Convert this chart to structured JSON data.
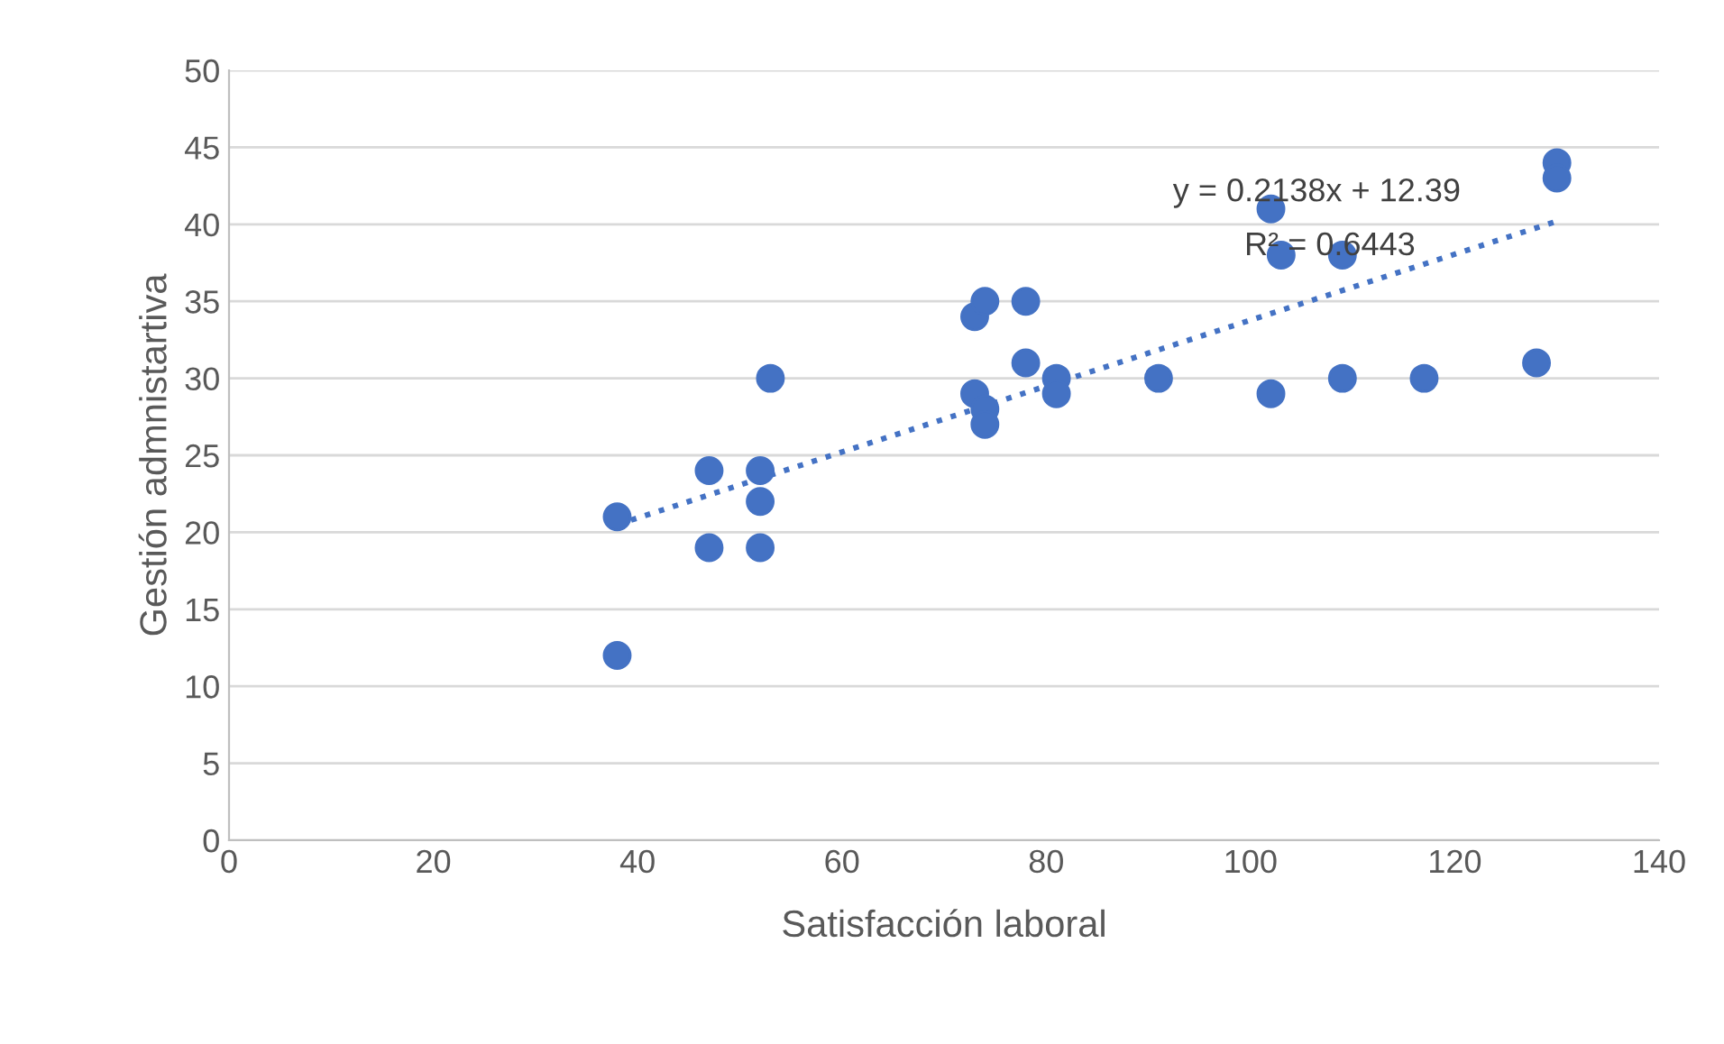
{
  "chart_data": {
    "type": "scatter",
    "xlabel": "Satisfacción laboral",
    "ylabel": "Gestión admnistartiva",
    "xlim": [
      0,
      140
    ],
    "xticks": [
      0,
      20,
      40,
      60,
      80,
      100,
      120,
      140
    ],
    "ylim": [
      0,
      50
    ],
    "yticks": [
      0,
      5,
      10,
      15,
      20,
      25,
      30,
      35,
      40,
      45,
      50
    ],
    "grid": "y",
    "marker": "circle",
    "series": [
      {
        "color": "#4472c4",
        "x": [
          38,
          38,
          47,
          47,
          52,
          52,
          52,
          53,
          73,
          74,
          78,
          78,
          73,
          74,
          74,
          81,
          81,
          91,
          102,
          102,
          103,
          109,
          109,
          117,
          128,
          130,
          130
        ],
        "values": [
          21,
          12,
          24,
          19,
          24,
          22,
          19,
          30,
          34,
          35,
          35,
          31,
          29,
          28,
          27,
          30,
          29,
          30,
          29,
          41,
          38,
          38,
          30,
          30,
          31,
          44,
          43
        ]
      },
      {
        "type": "line",
        "color": "#4472c4",
        "line_style": "dotted",
        "marker": "none",
        "x": [
          38,
          130
        ],
        "values": [
          20.5,
          40.2
        ]
      }
    ],
    "annotations": [
      "y = 0.2138x + 12.39",
      "R² = 0.6443"
    ]
  }
}
